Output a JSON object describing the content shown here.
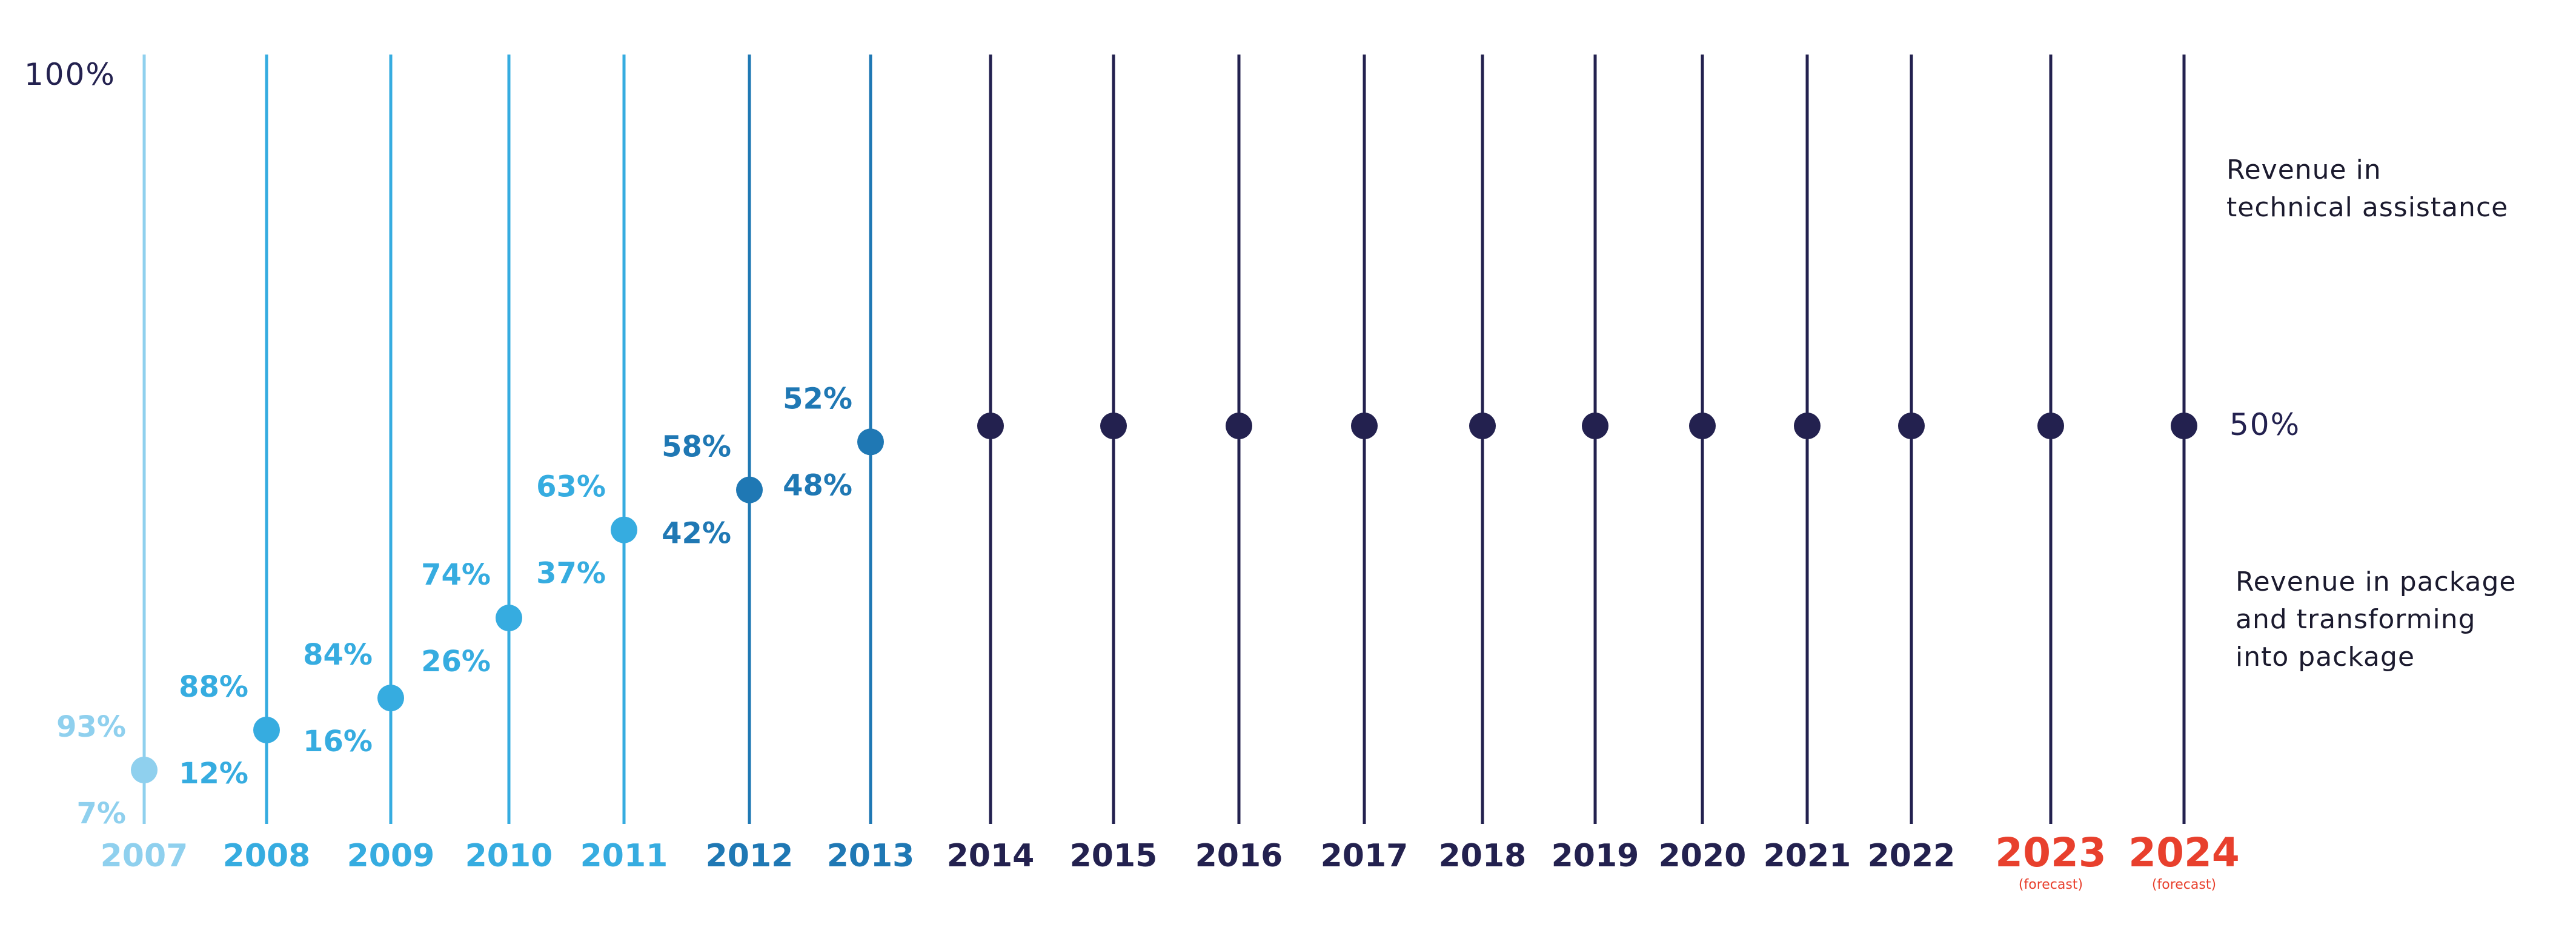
{
  "chart_data": {
    "type": "scatter",
    "title": "",
    "xlabel": "",
    "ylabel": "",
    "ylim": [
      0,
      100
    ],
    "top_label": "100%",
    "years": [
      {
        "label": "2007",
        "forecast": false,
        "color": "#8fd0ee",
        "a": 93,
        "a_label": "93%",
        "b": 7,
        "b_label": "7%"
      },
      {
        "label": "2008",
        "forecast": false,
        "color": "#36ace0",
        "a": 88,
        "a_label": "88%",
        "b": 12,
        "b_label": "12%"
      },
      {
        "label": "2009",
        "forecast": false,
        "color": "#36ace0",
        "a": 84,
        "a_label": "84%",
        "b": 16,
        "b_label": "16%"
      },
      {
        "label": "2010",
        "forecast": false,
        "color": "#36ace0",
        "a": 74,
        "a_label": "74%",
        "b": 26,
        "b_label": "26%"
      },
      {
        "label": "2011",
        "forecast": false,
        "color": "#36ace0",
        "a": 63,
        "a_label": "63%",
        "b": 37,
        "b_label": "37%"
      },
      {
        "label": "2012",
        "forecast": false,
        "color": "#1f78b4",
        "a": 58,
        "a_label": "58%",
        "b": 42,
        "b_label": "42%"
      },
      {
        "label": "2013",
        "forecast": false,
        "color": "#1f78b4",
        "a": 52,
        "a_label": "52%",
        "b": 48,
        "b_label": "48%"
      },
      {
        "label": "2014",
        "forecast": false,
        "color": "#23214f",
        "a": 50,
        "a_label": "",
        "b": 50,
        "b_label": ""
      },
      {
        "label": "2015",
        "forecast": false,
        "color": "#23214f",
        "a": 50,
        "a_label": "",
        "b": 50,
        "b_label": ""
      },
      {
        "label": "2016",
        "forecast": false,
        "color": "#23214f",
        "a": 50,
        "a_label": "",
        "b": 50,
        "b_label": ""
      },
      {
        "label": "2017",
        "forecast": false,
        "color": "#23214f",
        "a": 50,
        "a_label": "",
        "b": 50,
        "b_label": ""
      },
      {
        "label": "2018",
        "forecast": false,
        "color": "#23214f",
        "a": 50,
        "a_label": "",
        "b": 50,
        "b_label": ""
      },
      {
        "label": "2019",
        "forecast": false,
        "color": "#23214f",
        "a": 50,
        "a_label": "",
        "b": 50,
        "b_label": ""
      },
      {
        "label": "2020",
        "forecast": false,
        "color": "#23214f",
        "a": 50,
        "a_label": "",
        "b": 50,
        "b_label": ""
      },
      {
        "label": "2021",
        "forecast": false,
        "color": "#23214f",
        "a": 50,
        "a_label": "",
        "b": 50,
        "b_label": ""
      },
      {
        "label": "2022",
        "forecast": false,
        "color": "#23214f",
        "a": 50,
        "a_label": "",
        "b": 50,
        "b_label": ""
      },
      {
        "label": "2023",
        "forecast": true,
        "forecast_note": "(forecast)",
        "color": "#23214f",
        "year_color": "#e8402d",
        "a": 50,
        "a_label": "",
        "b": 50,
        "b_label": ""
      },
      {
        "label": "2024",
        "forecast": true,
        "forecast_note": "(forecast)",
        "color": "#23214f",
        "year_color": "#e8402d",
        "a": 50,
        "a_label": "",
        "b": 50,
        "b_label": ""
      }
    ],
    "series": [
      {
        "name": "Revenue in technical assistance",
        "key": "a"
      },
      {
        "name": "Revenue in package and transforming into package",
        "key": "b"
      }
    ],
    "equal_label": "50%"
  },
  "legend": {
    "technical_assistance": "Revenue in\ntechnical assistance",
    "package": "Revenue in package\nand transforming\ninto package"
  },
  "colors": {
    "navy": "#23214f",
    "forecast_red": "#e8402d"
  }
}
